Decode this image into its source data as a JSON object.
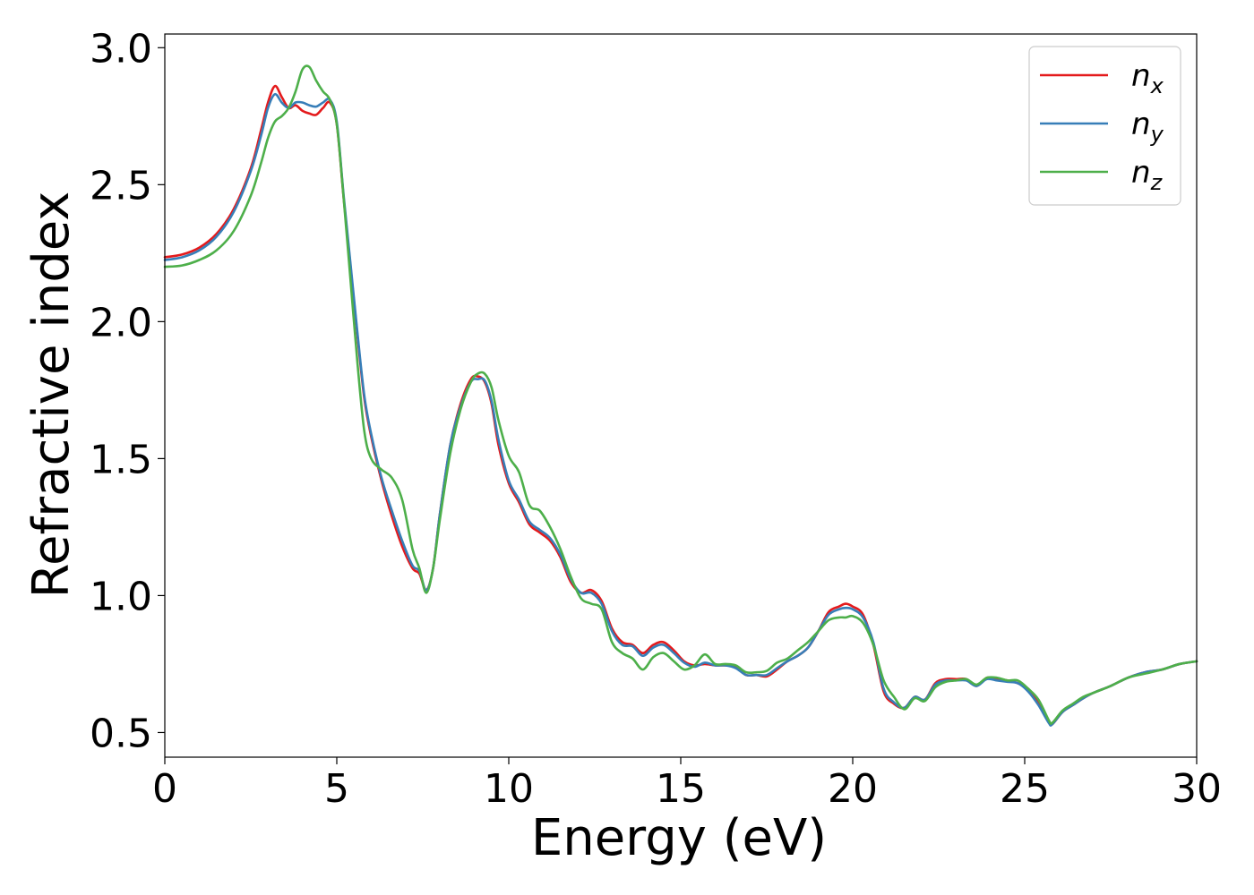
{
  "chart_data": {
    "type": "line",
    "xlabel": "Energy (eV)",
    "ylabel": "Refractive index",
    "xlim": [
      0,
      30
    ],
    "ylim": [
      0.41,
      3.05
    ],
    "xticks": [
      0,
      5,
      10,
      15,
      20,
      25,
      30
    ],
    "xtick_labels": [
      "0",
      "5",
      "10",
      "15",
      "20",
      "25",
      "30"
    ],
    "yticks": [
      0.5,
      1.0,
      1.5,
      2.0,
      2.5,
      3.0
    ],
    "ytick_labels": [
      "0.5",
      "1.0",
      "1.5",
      "2.0",
      "2.5",
      "3.0"
    ],
    "grid": false,
    "legend_position": "top-right",
    "series": [
      {
        "name": "n",
        "subscript": "x",
        "color": "#e41a1c",
        "x": [
          0,
          0.5,
          1.0,
          1.5,
          2.0,
          2.5,
          2.8,
          3.0,
          3.2,
          3.4,
          3.6,
          3.8,
          4.0,
          4.2,
          4.4,
          4.6,
          4.8,
          5.0,
          5.2,
          5.4,
          5.6,
          5.8,
          6.0,
          6.3,
          6.6,
          6.9,
          7.2,
          7.4,
          7.6,
          7.8,
          8.0,
          8.3,
          8.6,
          8.9,
          9.1,
          9.3,
          9.5,
          9.7,
          10.0,
          10.3,
          10.6,
          10.9,
          11.2,
          11.5,
          11.8,
          12.1,
          12.4,
          12.7,
          13.0,
          13.3,
          13.6,
          13.9,
          14.2,
          14.5,
          14.8,
          15.1,
          15.4,
          15.7,
          16.0,
          16.3,
          16.6,
          16.9,
          17.2,
          17.5,
          17.8,
          18.1,
          18.4,
          18.7,
          19.0,
          19.3,
          19.6,
          19.8,
          20.0,
          20.3,
          20.6,
          20.9,
          21.2,
          21.5,
          21.8,
          22.1,
          22.4,
          22.7,
          23.0,
          23.3,
          23.6,
          23.9,
          24.2,
          24.5,
          24.8,
          25.1,
          25.4,
          25.7,
          25.8,
          26.1,
          26.4,
          26.7,
          27.0,
          27.5,
          28.0,
          28.5,
          29.0,
          29.5,
          30.0
        ],
        "values": [
          2.235,
          2.245,
          2.27,
          2.32,
          2.41,
          2.56,
          2.7,
          2.8,
          2.86,
          2.82,
          2.78,
          2.79,
          2.77,
          2.76,
          2.755,
          2.78,
          2.8,
          2.72,
          2.45,
          2.2,
          1.95,
          1.72,
          1.58,
          1.42,
          1.29,
          1.18,
          1.1,
          1.08,
          1.02,
          1.1,
          1.3,
          1.55,
          1.7,
          1.79,
          1.8,
          1.78,
          1.7,
          1.55,
          1.41,
          1.34,
          1.26,
          1.23,
          1.2,
          1.14,
          1.05,
          1.01,
          1.02,
          0.98,
          0.88,
          0.83,
          0.82,
          0.79,
          0.82,
          0.83,
          0.8,
          0.76,
          0.745,
          0.75,
          0.745,
          0.745,
          0.74,
          0.71,
          0.71,
          0.705,
          0.73,
          0.76,
          0.78,
          0.81,
          0.87,
          0.94,
          0.96,
          0.97,
          0.96,
          0.93,
          0.82,
          0.65,
          0.605,
          0.59,
          0.63,
          0.62,
          0.68,
          0.695,
          0.695,
          0.695,
          0.67,
          0.7,
          0.695,
          0.69,
          0.68,
          0.66,
          0.61,
          0.54,
          0.53,
          0.575,
          0.6,
          0.625,
          0.645,
          0.67,
          0.7,
          0.72,
          0.73,
          0.75,
          0.76
        ]
      },
      {
        "name": "n",
        "subscript": "y",
        "color": "#377eb8",
        "x": [
          0,
          0.5,
          1.0,
          1.5,
          2.0,
          2.5,
          2.8,
          3.0,
          3.2,
          3.4,
          3.6,
          3.8,
          4.0,
          4.2,
          4.4,
          4.6,
          4.8,
          5.0,
          5.2,
          5.4,
          5.6,
          5.8,
          6.0,
          6.3,
          6.6,
          6.9,
          7.2,
          7.4,
          7.6,
          7.8,
          8.0,
          8.3,
          8.6,
          8.9,
          9.1,
          9.3,
          9.5,
          9.7,
          10.0,
          10.3,
          10.6,
          10.9,
          11.2,
          11.5,
          11.8,
          12.1,
          12.4,
          12.7,
          13.0,
          13.3,
          13.6,
          13.9,
          14.2,
          14.5,
          14.8,
          15.1,
          15.4,
          15.7,
          16.0,
          16.3,
          16.6,
          16.9,
          17.2,
          17.5,
          17.8,
          18.1,
          18.4,
          18.7,
          19.0,
          19.3,
          19.6,
          19.8,
          20.0,
          20.3,
          20.6,
          20.9,
          21.2,
          21.5,
          21.8,
          22.1,
          22.4,
          22.7,
          23.0,
          23.3,
          23.6,
          23.9,
          24.2,
          24.5,
          24.8,
          25.1,
          25.4,
          25.7,
          25.8,
          26.1,
          26.4,
          26.7,
          27.0,
          27.5,
          28.0,
          28.5,
          29.0,
          29.5,
          30.0
        ],
        "values": [
          2.225,
          2.235,
          2.26,
          2.31,
          2.4,
          2.55,
          2.68,
          2.78,
          2.83,
          2.8,
          2.78,
          2.8,
          2.8,
          2.79,
          2.785,
          2.8,
          2.81,
          2.73,
          2.46,
          2.21,
          1.96,
          1.73,
          1.59,
          1.43,
          1.31,
          1.2,
          1.11,
          1.09,
          1.02,
          1.1,
          1.3,
          1.55,
          1.69,
          1.78,
          1.79,
          1.785,
          1.71,
          1.57,
          1.42,
          1.35,
          1.27,
          1.24,
          1.21,
          1.15,
          1.06,
          1.01,
          1.01,
          0.97,
          0.87,
          0.82,
          0.815,
          0.78,
          0.81,
          0.82,
          0.79,
          0.755,
          0.74,
          0.755,
          0.745,
          0.745,
          0.735,
          0.71,
          0.71,
          0.71,
          0.735,
          0.76,
          0.78,
          0.81,
          0.87,
          0.93,
          0.95,
          0.955,
          0.95,
          0.92,
          0.83,
          0.66,
          0.61,
          0.59,
          0.63,
          0.62,
          0.675,
          0.69,
          0.69,
          0.69,
          0.67,
          0.695,
          0.69,
          0.685,
          0.68,
          0.65,
          0.6,
          0.535,
          0.53,
          0.575,
          0.6,
          0.625,
          0.645,
          0.67,
          0.7,
          0.72,
          0.73,
          0.75,
          0.76
        ]
      },
      {
        "name": "n",
        "subscript": "z",
        "color": "#4daf4a",
        "x": [
          0,
          0.5,
          1.0,
          1.5,
          2.0,
          2.5,
          2.8,
          3.0,
          3.2,
          3.4,
          3.6,
          3.8,
          4.0,
          4.2,
          4.4,
          4.6,
          4.8,
          5.0,
          5.2,
          5.4,
          5.6,
          5.8,
          6.0,
          6.3,
          6.6,
          6.9,
          7.2,
          7.4,
          7.6,
          7.8,
          8.0,
          8.3,
          8.6,
          8.9,
          9.1,
          9.3,
          9.5,
          9.7,
          10.0,
          10.3,
          10.6,
          10.9,
          11.2,
          11.5,
          11.8,
          12.1,
          12.4,
          12.7,
          13.0,
          13.3,
          13.6,
          13.9,
          14.2,
          14.5,
          14.8,
          15.1,
          15.4,
          15.7,
          16.0,
          16.3,
          16.6,
          16.9,
          17.2,
          17.5,
          17.8,
          18.1,
          18.4,
          18.7,
          19.0,
          19.3,
          19.6,
          19.8,
          20.0,
          20.3,
          20.6,
          20.9,
          21.2,
          21.5,
          21.8,
          22.1,
          22.4,
          22.7,
          23.0,
          23.3,
          23.6,
          23.9,
          24.2,
          24.5,
          24.8,
          25.1,
          25.4,
          25.7,
          25.8,
          26.1,
          26.4,
          26.7,
          27.0,
          27.5,
          28.0,
          28.5,
          29.0,
          29.5,
          30.0
        ],
        "values": [
          2.2,
          2.205,
          2.225,
          2.26,
          2.33,
          2.46,
          2.58,
          2.67,
          2.73,
          2.75,
          2.78,
          2.84,
          2.92,
          2.93,
          2.88,
          2.84,
          2.81,
          2.72,
          2.45,
          2.15,
          1.85,
          1.6,
          1.5,
          1.46,
          1.43,
          1.35,
          1.17,
          1.1,
          1.01,
          1.1,
          1.28,
          1.52,
          1.68,
          1.78,
          1.81,
          1.81,
          1.76,
          1.64,
          1.51,
          1.45,
          1.33,
          1.31,
          1.25,
          1.17,
          1.07,
          0.99,
          0.97,
          0.95,
          0.83,
          0.79,
          0.77,
          0.73,
          0.775,
          0.79,
          0.76,
          0.73,
          0.745,
          0.785,
          0.75,
          0.75,
          0.745,
          0.72,
          0.72,
          0.725,
          0.755,
          0.77,
          0.8,
          0.83,
          0.87,
          0.91,
          0.92,
          0.92,
          0.925,
          0.9,
          0.82,
          0.69,
          0.63,
          0.585,
          0.625,
          0.615,
          0.665,
          0.685,
          0.69,
          0.695,
          0.675,
          0.7,
          0.7,
          0.69,
          0.69,
          0.66,
          0.62,
          0.545,
          0.535,
          0.58,
          0.605,
          0.63,
          0.645,
          0.67,
          0.7,
          0.715,
          0.73,
          0.75,
          0.76
        ]
      }
    ]
  }
}
